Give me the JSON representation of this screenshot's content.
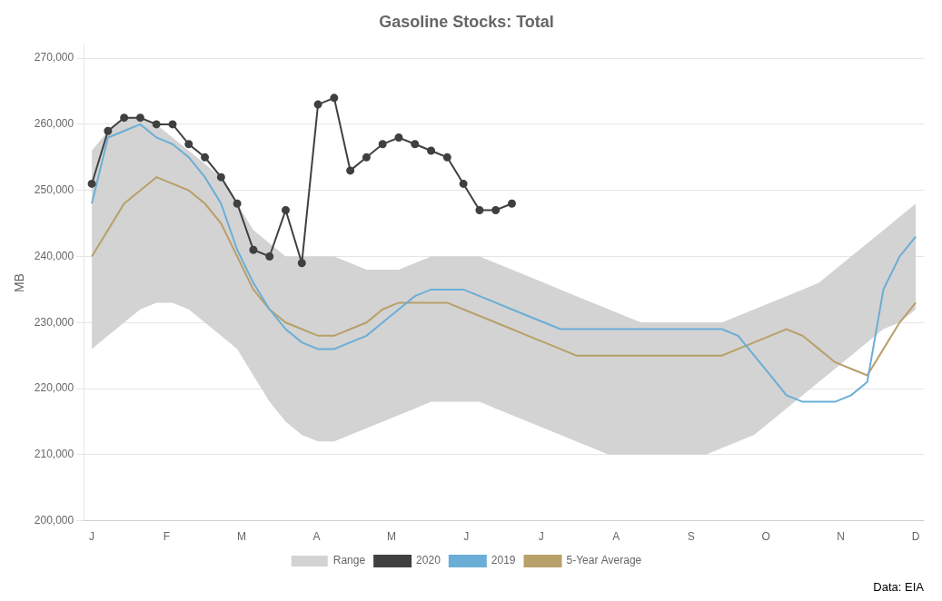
{
  "chart_data": {
    "type": "line",
    "title": "Gasoline Stocks: Total",
    "y_label": "MB",
    "annotations": [
      {
        "text": "Data: EIA"
      }
    ],
    "legend": "bottom",
    "grid": "y",
    "xlim": [
      -0.5,
      51.5
    ],
    "xticks": [
      {
        "value": 0,
        "label": "J"
      },
      {
        "value": 4.636363636363637,
        "label": "F"
      },
      {
        "value": 9.272727272727273,
        "label": "M"
      },
      {
        "value": 13.90909090909091,
        "label": "A"
      },
      {
        "value": 18.545454545454547,
        "label": "M"
      },
      {
        "value": 23.181818181818183,
        "label": "J"
      },
      {
        "value": 27.81818181818182,
        "label": "J"
      },
      {
        "value": 32.45454545454546,
        "label": "A"
      },
      {
        "value": 37.09090909090909,
        "label": "S"
      },
      {
        "value": 41.72727272727273,
        "label": "O"
      },
      {
        "value": 46.36363636363637,
        "label": "N"
      },
      {
        "value": 51,
        "label": "D"
      }
    ],
    "ylim": [
      200000,
      272000
    ],
    "yticks": [
      {
        "value": 200000,
        "label": "200,000"
      },
      {
        "value": 210000,
        "label": "210,000"
      },
      {
        "value": 220000,
        "label": "220,000"
      },
      {
        "value": 230000,
        "label": "230,000"
      },
      {
        "value": 240000,
        "label": "240,000"
      },
      {
        "value": 250000,
        "label": "250,000"
      },
      {
        "value": 260000,
        "label": "260,000"
      },
      {
        "value": 270000,
        "label": "270,000"
      }
    ],
    "x": [
      0,
      1,
      2,
      3,
      4,
      5,
      6,
      7,
      8,
      9,
      10,
      11,
      12,
      13,
      14,
      15,
      16,
      17,
      18,
      19,
      20,
      21,
      22,
      23,
      24,
      25,
      26,
      27,
      28,
      29,
      30,
      31,
      32,
      33,
      34,
      35,
      36,
      37,
      38,
      39,
      40,
      41,
      42,
      43,
      44,
      45,
      46,
      47,
      48,
      49,
      50,
      51
    ],
    "series": [
      {
        "name": "Range",
        "type": "range",
        "color": "#d3d3d3",
        "upper": [
          256000,
          259000,
          261000,
          261000,
          260000,
          258000,
          256000,
          254000,
          252000,
          248000,
          244000,
          242000,
          240000,
          240000,
          240000,
          240000,
          239000,
          238000,
          238000,
          238000,
          239000,
          240000,
          240000,
          240000,
          240000,
          239000,
          238000,
          237000,
          236000,
          235000,
          234000,
          233000,
          232000,
          231000,
          230000,
          230000,
          230000,
          230000,
          230000,
          230000,
          231000,
          232000,
          233000,
          234000,
          235000,
          236000,
          238000,
          240000,
          242000,
          244000,
          246000,
          248000
        ],
        "lower": [
          226000,
          228000,
          230000,
          232000,
          233000,
          233000,
          232000,
          230000,
          228000,
          226000,
          222000,
          218000,
          215000,
          213000,
          212000,
          212000,
          213000,
          214000,
          215000,
          216000,
          217000,
          218000,
          218000,
          218000,
          218000,
          217000,
          216000,
          215000,
          214000,
          213000,
          212000,
          211000,
          210000,
          210000,
          210000,
          210000,
          210000,
          210000,
          210000,
          211000,
          212000,
          213000,
          215000,
          217000,
          219000,
          221000,
          223000,
          225000,
          227000,
          229000,
          230000,
          232000
        ]
      },
      {
        "name": "2020",
        "type": "line",
        "color": "#404040",
        "marker": "circle",
        "x": [
          0,
          1,
          2,
          3,
          4,
          5,
          6,
          7,
          8,
          9,
          10,
          11,
          12,
          13,
          14,
          15,
          16,
          17,
          18,
          19,
          20,
          21,
          22,
          23,
          24,
          25,
          26
        ],
        "values": [
          251000,
          259000,
          261000,
          261000,
          260000,
          260000,
          257000,
          255000,
          252000,
          248000,
          241000,
          240000,
          247000,
          239000,
          263000,
          264000,
          253000,
          255000,
          257000,
          258000,
          257000,
          256000,
          255000,
          251000,
          247000,
          247000,
          248000
        ]
      },
      {
        "name": "2019",
        "type": "line",
        "color": "#6baed6",
        "values": [
          248000,
          258000,
          259000,
          260000,
          258000,
          257000,
          255000,
          252000,
          248000,
          241000,
          236000,
          232000,
          229000,
          227000,
          226000,
          226000,
          227000,
          228000,
          230000,
          232000,
          234000,
          235000,
          235000,
          235000,
          234000,
          233000,
          232000,
          231000,
          230000,
          229000,
          229000,
          229000,
          229000,
          229000,
          229000,
          229000,
          229000,
          229000,
          229000,
          229000,
          228000,
          225000,
          222000,
          219000,
          218000,
          218000,
          218000,
          219000,
          221000,
          235000,
          240000,
          243000
        ]
      },
      {
        "name": "5-Year Average",
        "type": "line",
        "color": "#b8a06a",
        "values": [
          240000,
          244000,
          248000,
          250000,
          252000,
          251000,
          250000,
          248000,
          245000,
          240000,
          235000,
          232000,
          230000,
          229000,
          228000,
          228000,
          229000,
          230000,
          232000,
          233000,
          233000,
          233000,
          233000,
          232000,
          231000,
          230000,
          229000,
          228000,
          227000,
          226000,
          225000,
          225000,
          225000,
          225000,
          225000,
          225000,
          225000,
          225000,
          225000,
          225000,
          226000,
          227000,
          228000,
          229000,
          228000,
          226000,
          224000,
          223000,
          222000,
          226000,
          230000,
          233000
        ]
      }
    ]
  }
}
